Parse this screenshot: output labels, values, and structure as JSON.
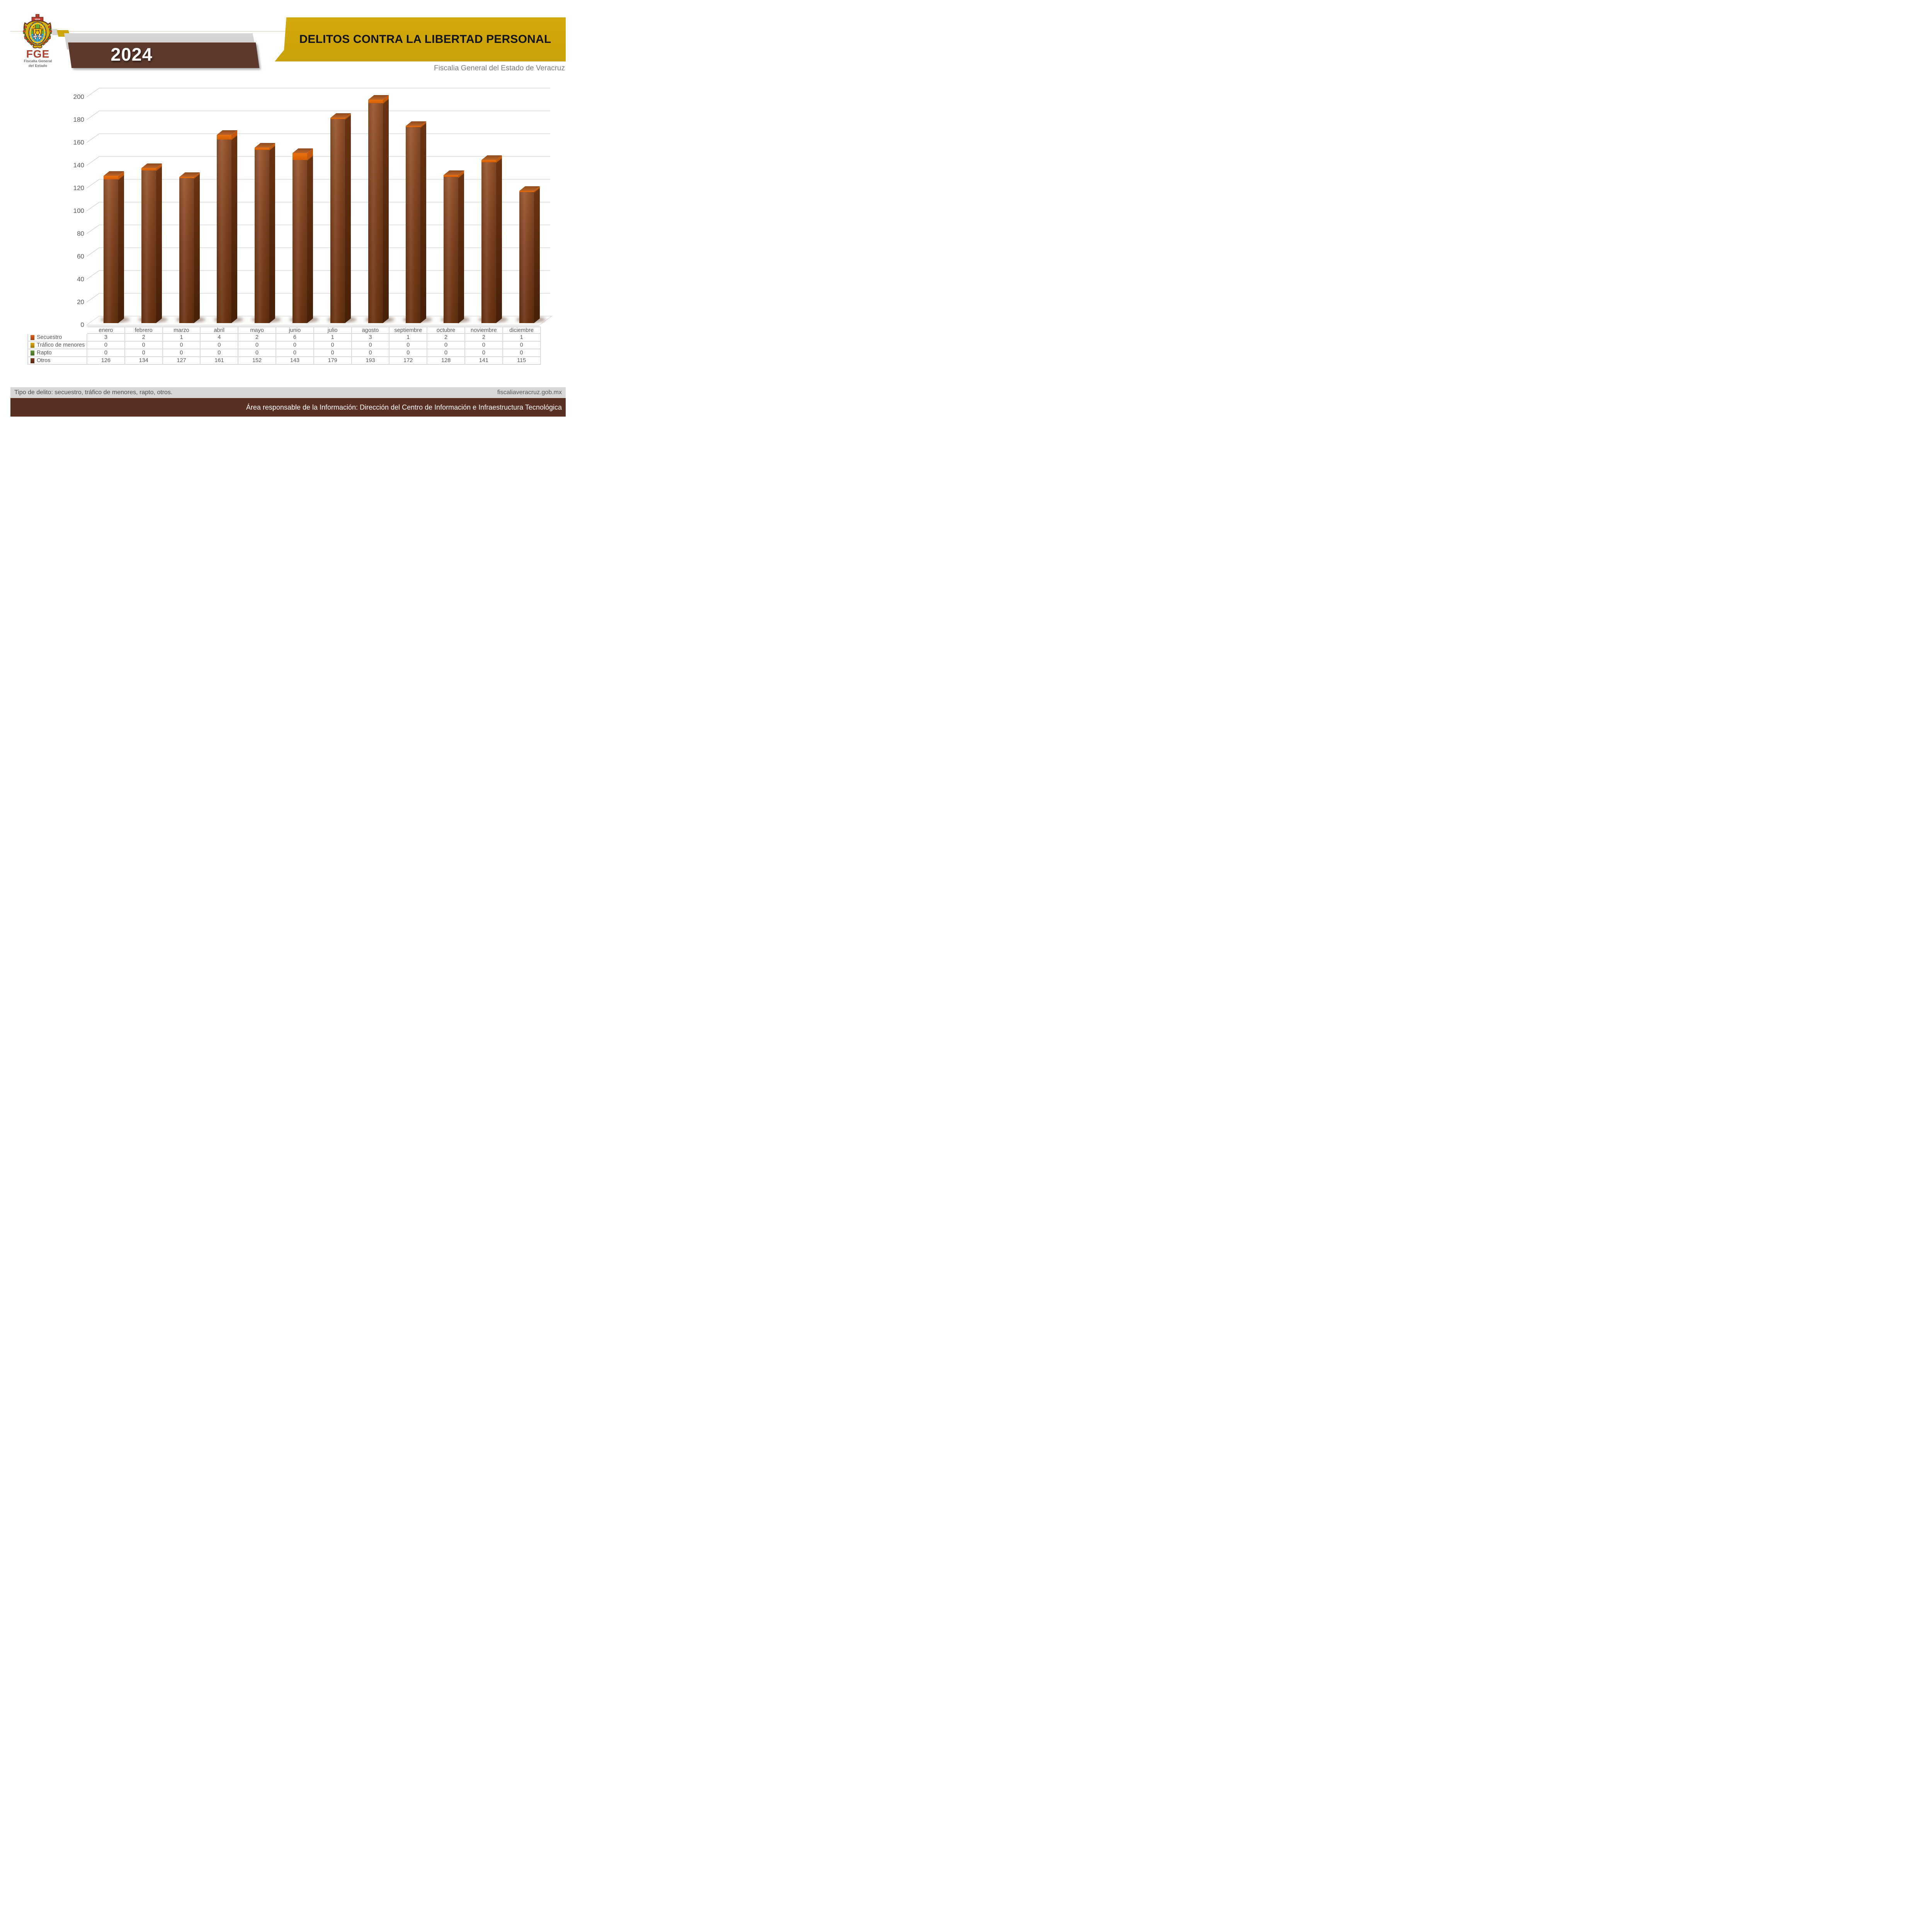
{
  "header": {
    "year": "2024",
    "title": "DELITOS CONTRA LA LIBERTAD PERSONAL",
    "subtitle": "Fiscalia General del Estado de Veracruz",
    "logo": {
      "acronym": "FGE",
      "org_line1": "Fiscalía General",
      "org_line2": "del Estado",
      "crest_banner": "VERA",
      "crest_motto_left": "PLUS",
      "crest_motto_right": "ULTRA"
    }
  },
  "chart_data": {
    "type": "bar",
    "style": "3d-stacked-column",
    "title": "DELITOS CONTRA LA LIBERTAD PERSONAL",
    "categories": [
      "enero",
      "febrero",
      "marzo",
      "abril",
      "mayo",
      "junio",
      "julio",
      "agosto",
      "septiembre",
      "octubre",
      "noviembre",
      "diciembre"
    ],
    "series": [
      {
        "name": "Secuestro",
        "color": "#C24E17",
        "values": [
          3,
          2,
          1,
          4,
          2,
          6,
          1,
          3,
          1,
          2,
          2,
          1
        ]
      },
      {
        "name": "Tráfico de menores",
        "color": "#C29008",
        "values": [
          0,
          0,
          0,
          0,
          0,
          0,
          0,
          0,
          0,
          0,
          0,
          0
        ]
      },
      {
        "name": "Rapto",
        "color": "#568230",
        "values": [
          0,
          0,
          0,
          0,
          0,
          0,
          0,
          0,
          0,
          0,
          0,
          0
        ]
      },
      {
        "name": "Otros",
        "color": "#703018",
        "values": [
          126,
          134,
          127,
          161,
          152,
          143,
          179,
          193,
          172,
          128,
          141,
          115
        ]
      }
    ],
    "stack_order_bottom_to_top": [
      "Otros",
      "Rapto",
      "Tráfico de menores",
      "Secuestro"
    ],
    "ylim": [
      0,
      200
    ],
    "ytick_step": 20,
    "grid": true,
    "legend_position": "table-rows-left",
    "xlabel": "",
    "ylabel": ""
  },
  "footer": {
    "note": "Tipo de delito: secuestro, tráfico de menores, rapto, otros.",
    "website": "fiscaliaveracruz.gob.mx",
    "responsibility": "Área responsable de la Información: Dirección del Centro de Información e Infraestructura Tecnológica"
  }
}
